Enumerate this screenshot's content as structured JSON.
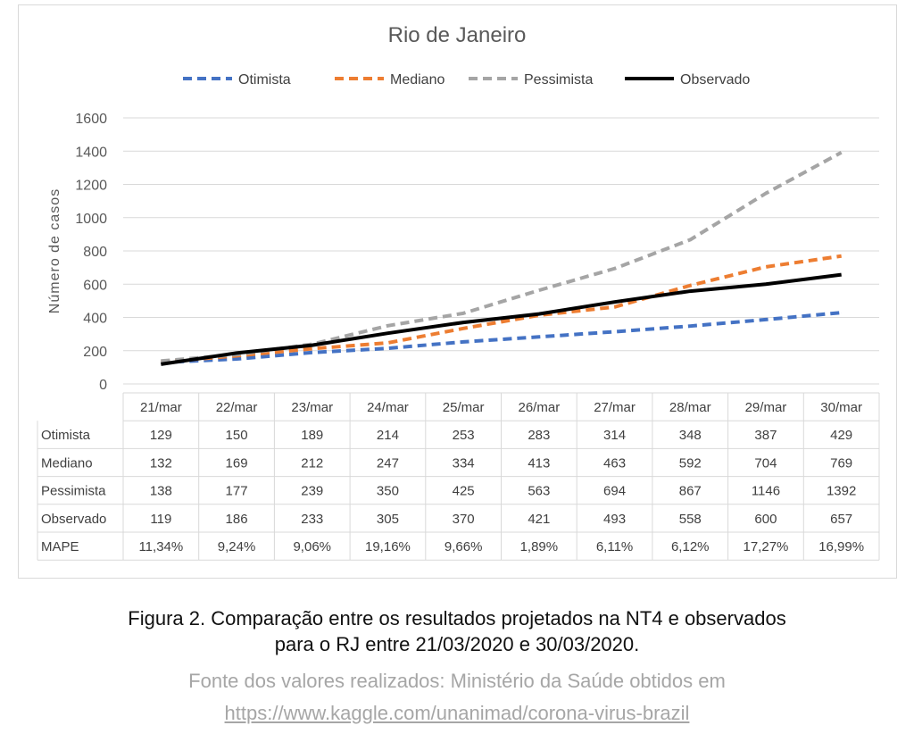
{
  "chart_data": {
    "type": "line",
    "title": "Rio de Janeiro",
    "ylabel": "Número de casos",
    "xlabel": "",
    "ylim": [
      0,
      1600
    ],
    "yticks": [
      0,
      200,
      400,
      600,
      800,
      1000,
      1200,
      1400,
      1600
    ],
    "grid": true,
    "legend_position": "top",
    "categories": [
      "21/mar",
      "22/mar",
      "23/mar",
      "24/mar",
      "25/mar",
      "26/mar",
      "27/mar",
      "28/mar",
      "29/mar",
      "30/mar"
    ],
    "series": [
      {
        "name": "Otimista",
        "color": "#4472c4",
        "dash": true,
        "values": [
          129,
          150,
          189,
          214,
          253,
          283,
          314,
          348,
          387,
          429
        ]
      },
      {
        "name": "Mediano",
        "color": "#ed7d31",
        "dash": true,
        "values": [
          132,
          169,
          212,
          247,
          334,
          413,
          463,
          592,
          704,
          769
        ]
      },
      {
        "name": "Pessimista",
        "color": "#a5a5a5",
        "dash": true,
        "values": [
          138,
          177,
          239,
          350,
          425,
          563,
          694,
          867,
          1146,
          1392
        ]
      },
      {
        "name": "Observado",
        "color": "#000000",
        "dash": false,
        "values": [
          119,
          186,
          233,
          305,
          370,
          421,
          493,
          558,
          600,
          657
        ]
      }
    ],
    "table_extra_row": {
      "name": "MAPE",
      "values": [
        "11,34%",
        "9,24%",
        "9,06%",
        "19,16%",
        "9,66%",
        "1,89%",
        "6,11%",
        "6,12%",
        "17,27%",
        "16,99%"
      ]
    }
  },
  "caption": {
    "line1": "Figura 2. Comparação entre os resultados projetados na NT4 e observados",
    "line2": "para o RJ entre 21/03/2020 e 30/03/2020.",
    "source": "Fonte dos valores realizados: Ministério da Saúde obtidos em",
    "link": "https://www.kaggle.com/unanimad/corona-virus-brazil"
  }
}
